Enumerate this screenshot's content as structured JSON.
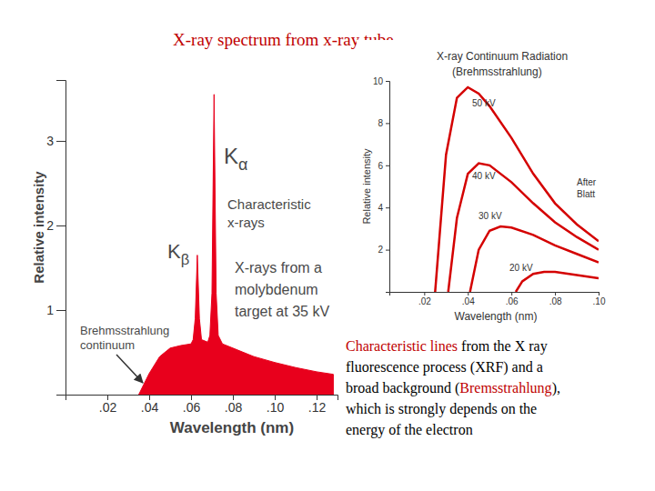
{
  "title": "X-ray spectrum from x-ray tube",
  "chart_data": [
    {
      "type": "area",
      "color": "#e8001c",
      "x_label": "Wavelength (nm)",
      "y_label": "Relative intensity",
      "xlim": [
        0,
        0.13
      ],
      "ylim": [
        0,
        3.72
      ],
      "xticks": [
        {
          "value": 0.02,
          "label": ".02"
        },
        {
          "value": 0.04,
          "label": ".04"
        },
        {
          "value": 0.06,
          "label": ".06"
        },
        {
          "value": 0.08,
          "label": ".08"
        },
        {
          "value": 0.1,
          "label": ".10"
        },
        {
          "value": 0.12,
          "label": ".12"
        }
      ],
      "yticks": [
        1,
        2,
        3
      ],
      "x": [
        0.035,
        0.038,
        0.04,
        0.045,
        0.05,
        0.055,
        0.06,
        0.061,
        0.062,
        0.063,
        0.064,
        0.065,
        0.068,
        0.069,
        0.07,
        0.071,
        0.072,
        0.073,
        0.075,
        0.08,
        0.09,
        0.1,
        0.11,
        0.12,
        0.128
      ],
      "values": [
        0,
        0.15,
        0.25,
        0.45,
        0.55,
        0.58,
        0.6,
        0.65,
        0.9,
        1.65,
        0.9,
        0.65,
        0.62,
        0.7,
        1.2,
        3.55,
        1.2,
        0.7,
        0.6,
        0.55,
        0.45,
        0.38,
        0.32,
        0.27,
        0.24
      ],
      "annotations": [
        [
          "Kα"
        ],
        [
          "Characteristic",
          "x-rays"
        ],
        [
          "Kβ"
        ],
        [
          "X-rays from a",
          "molybdenum",
          "target at 35 kV"
        ],
        [
          "Brehmsstrahlung",
          "continuum"
        ]
      ]
    },
    {
      "type": "line",
      "title": [
        "X-ray Continuum Radiation",
        "(Brehmsstrahlung)"
      ],
      "x_label": "Wavelength (nm)",
      "y_label": "Relative intensity",
      "xlim": [
        0.004,
        0.1
      ],
      "ylim": [
        0,
        10
      ],
      "xticks": [
        {
          "value": 0.02,
          "label": ".02"
        },
        {
          "value": 0.04,
          "label": ".04"
        },
        {
          "value": 0.06,
          "label": ".06"
        },
        {
          "value": 0.08,
          "label": ".08"
        },
        {
          "value": 0.1,
          "label": ".10"
        }
      ],
      "yticks": [
        2,
        4,
        6,
        8,
        10
      ],
      "series": [
        {
          "name": "50 kV",
          "color": "#d40000",
          "x": [
            0.025,
            0.03,
            0.035,
            0.04,
            0.045,
            0.05,
            0.06,
            0.07,
            0.08,
            0.09,
            0.1
          ],
          "values": [
            0,
            6.5,
            9.2,
            9.7,
            9.4,
            8.8,
            7.3,
            5.6,
            4.2,
            3.2,
            2.4
          ]
        },
        {
          "name": "40 kV",
          "color": "#d40000",
          "x": [
            0.031,
            0.035,
            0.04,
            0.045,
            0.05,
            0.06,
            0.07,
            0.08,
            0.09,
            0.1
          ],
          "values": [
            0,
            3.5,
            5.6,
            6.1,
            6.0,
            5.2,
            4.2,
            3.3,
            2.6,
            2.0
          ]
        },
        {
          "name": "30 kV",
          "color": "#d40000",
          "x": [
            0.041,
            0.045,
            0.05,
            0.055,
            0.06,
            0.07,
            0.08,
            0.09,
            0.1
          ],
          "values": [
            0,
            2.0,
            2.9,
            3.1,
            3.05,
            2.7,
            2.2,
            1.8,
            1.4
          ]
        },
        {
          "name": "20 kV",
          "color": "#d40000",
          "x": [
            0.062,
            0.065,
            0.07,
            0.075,
            0.08,
            0.09,
            0.1
          ],
          "values": [
            0,
            0.5,
            0.85,
            0.95,
            0.95,
            0.8,
            0.65
          ]
        }
      ],
      "note": [
        "After",
        "Blatt"
      ]
    }
  ],
  "caption": [
    [
      {
        "text": "Characteristic lines",
        "color": "#c00000"
      },
      {
        "text": " from the X ray"
      }
    ],
    [
      {
        "text": "fluorescence process (XRF) and a"
      }
    ],
    [
      {
        "text": "broad background ("
      },
      {
        "text": "Bremsstrahlung",
        "color": "#c00000"
      },
      {
        "text": "),"
      }
    ],
    [
      {
        "text": "which is strongly depends on the"
      }
    ],
    [
      {
        "text": "energy of the electron"
      }
    ]
  ]
}
